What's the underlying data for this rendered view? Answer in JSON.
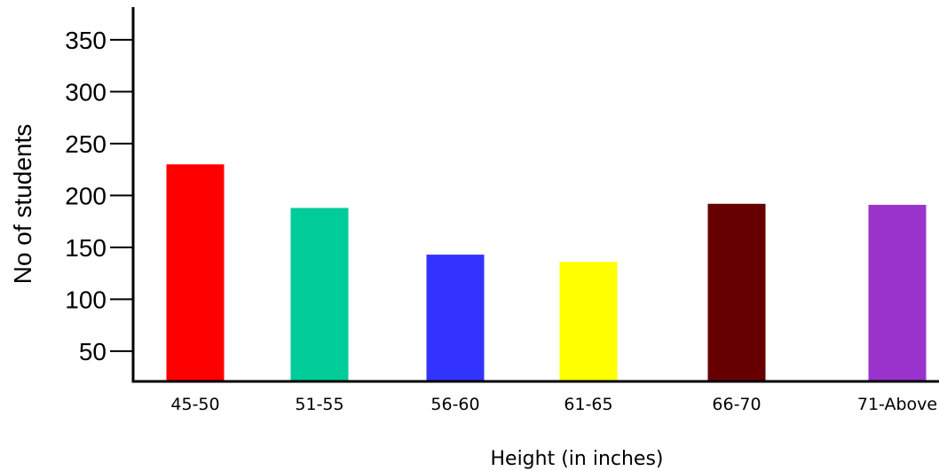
{
  "chart_data": {
    "type": "bar",
    "title": "",
    "xlabel": "Height (in inches)",
    "ylabel": "No of students",
    "categories": [
      "45-50",
      "51-55",
      "56-60",
      "61-65",
      "66-70",
      "71-Above"
    ],
    "values": [
      230,
      188,
      143,
      136,
      192,
      191
    ],
    "colors": [
      "#ff0000",
      "#00cc99",
      "#3333ff",
      "#ffff00",
      "#660000",
      "#9933cc"
    ],
    "yticks": [
      50,
      100,
      150,
      200,
      250,
      300,
      350
    ],
    "ylim": [
      20,
      370
    ],
    "grid": false,
    "legend": "none"
  }
}
